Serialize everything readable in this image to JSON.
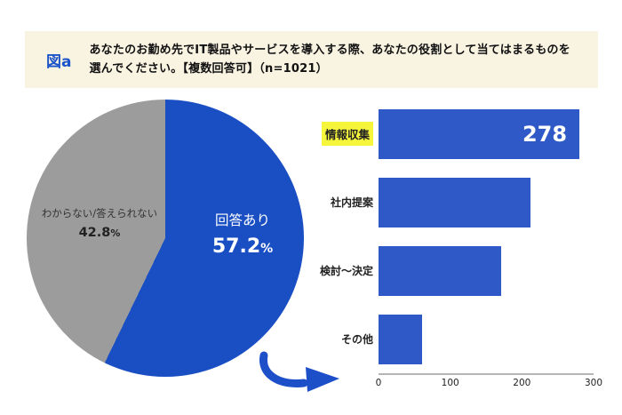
{
  "header": {
    "tag": "図a",
    "question": "あなたのお勤め先でIT製品やサービスを導入する際、あなたの役割として当てはまるものを選んでください。【複数回答可】（n=1021）"
  },
  "pie": {
    "answered": {
      "label": "回答あり",
      "pct_num": "57.2",
      "pct_unit": "%"
    },
    "unknown": {
      "label": "わからない/答えられない",
      "pct_num": "42.8",
      "pct_unit": "%"
    }
  },
  "chart_data": [
    {
      "type": "pie",
      "slices": [
        {
          "label": "回答あり",
          "value": 57.2,
          "color": "#1a4fc4"
        },
        {
          "label": "わからない/答えられない",
          "value": 42.8,
          "color": "#9c9c9c"
        }
      ],
      "start_angle": "top",
      "direction": "clockwise"
    },
    {
      "type": "bar",
      "orientation": "horizontal",
      "categories": [
        "情報収集",
        "社内提案",
        "検討〜決定",
        "その他"
      ],
      "values": [
        278,
        210,
        170,
        60
      ],
      "value_labels": [
        "278",
        null,
        null,
        null
      ],
      "highlight_category": "情報収集",
      "bar_color": "#2e59c7",
      "xlim": [
        0,
        300
      ],
      "xticks": [
        0,
        100,
        200,
        300
      ],
      "grid": false,
      "legend": "none"
    }
  ],
  "colors": {
    "header_bg": "#f9f3e2",
    "figure_tag_blue": "#1b53c9",
    "highlight_yellow": "#f5f53b",
    "pie_blue": "#1a4fc4",
    "pie_gray": "#9c9c9c",
    "bar_blue": "#2e59c7"
  }
}
